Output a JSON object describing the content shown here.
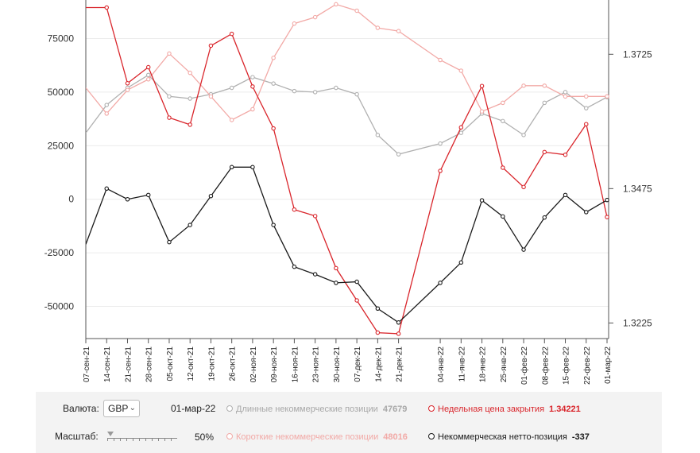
{
  "chart_data": {
    "type": "line",
    "x": [
      "07-сен-21",
      "14-сен-21",
      "21-сен-21",
      "28-сен-21",
      "05-окт-21",
      "12-окт-21",
      "19-окт-21",
      "26-окт-21",
      "02-ноя-21",
      "09-ноя-21",
      "16-ноя-21",
      "23-ноя-21",
      "30-ноя-21",
      "07-дек-21",
      "14-дек-21",
      "21-дек-21",
      "04-янв-22",
      "11-янв-22",
      "18-янв-22",
      "25-янв-22",
      "01-фев-22",
      "08-фев-22",
      "15-фев-22",
      "22-фев-22",
      "01-мар-22"
    ],
    "x_tick_labels": [
      "07-сен-21",
      "14-сен-21",
      "21-сен-21",
      "28-сен-21",
      "05-окт-21",
      "12-окт-21",
      "19-окт-21",
      "26-окт-21",
      "02-ноя-21",
      "09-ноя-21",
      "16-ноя-21",
      "23-ноя-21",
      "30-ноя-21",
      "07-дек-21",
      "14-дек-21",
      "21-дек-21",
      "04-янв-22",
      "11-янв-22",
      "18-янв-22",
      "25-янв-22",
      "01-фев-22",
      "08-фев-22",
      "15-фев-22",
      "22-фев-22",
      "01-мар-22"
    ],
    "y_left": {
      "ticks": [
        75000,
        50000,
        25000,
        0,
        -25000,
        -50000
      ],
      "range": [
        -65000,
        93000
      ]
    },
    "y_right": {
      "ticks": [
        "1.3725",
        "1.3475",
        "1.3225"
      ],
      "tick_values": [
        1.3725,
        1.3475,
        1.3225
      ],
      "range": [
        1.3196,
        1.3826
      ]
    },
    "series": [
      {
        "name": "Длинные некоммерческие позиции",
        "axis": "left",
        "color": "#b0b0b0",
        "values": [
          31000,
          44000,
          52000,
          58000,
          48000,
          47000,
          49000,
          52000,
          57000,
          54000,
          50500,
          50000,
          52000,
          49000,
          30000,
          21000,
          26000,
          31000,
          40000,
          36500,
          30000,
          45000,
          50000,
          42500,
          47679
        ]
      },
      {
        "name": "Короткие некоммерческие позиции",
        "axis": "left",
        "color": "#f2a9a6",
        "values": [
          52000,
          40000,
          51000,
          56000,
          68000,
          59000,
          48000,
          37000,
          42000,
          66000,
          82000,
          85000,
          91000,
          88000,
          80000,
          78500,
          65000,
          60000,
          41000,
          45000,
          53000,
          53000,
          48000,
          48000,
          48016
        ]
      },
      {
        "name": "Недельная цена закрытия",
        "axis": "right",
        "color": "#d9252b",
        "values": [
          1.3812,
          1.3812,
          1.3671,
          1.3701,
          1.3607,
          1.3594,
          1.3741,
          1.3763,
          1.3665,
          1.3587,
          1.3436,
          1.3424,
          1.3327,
          1.3267,
          1.3207,
          1.3205,
          1.3508,
          1.3589,
          1.3666,
          1.3514,
          1.3478,
          1.3543,
          1.3538,
          1.3595,
          1.34221
        ]
      },
      {
        "name": "Некоммерческая нетто-позиция",
        "axis": "left",
        "color": "#1a1a1a",
        "values": [
          -21000,
          5000,
          0,
          2000,
          -20000,
          -12000,
          1500,
          15000,
          15000,
          -12000,
          -31500,
          -35000,
          -39000,
          -38500,
          -51000,
          -57500,
          -39000,
          -29500,
          -500,
          -8000,
          -23500,
          -8500,
          2000,
          -6000,
          -337
        ]
      }
    ]
  },
  "controls": {
    "currency_label": "Валюта:",
    "currency_value": "GBP",
    "date_value": "01-мар-22",
    "scale_label": "Масштаб:",
    "scale_value": "50%"
  },
  "legend": [
    {
      "label": "Длинные некоммерческие позиции",
      "value": "47679",
      "color": "#b0b0b0"
    },
    {
      "label": "Недельная цена закрытия",
      "value": "1.34221",
      "color": "#d9252b"
    },
    {
      "label": "Короткие некоммерческие позиции",
      "value": "48016",
      "color": "#f2a9a6"
    },
    {
      "label": "Некоммерческая нетто-позиция",
      "value": "-337",
      "color": "#1a1a1a"
    }
  ]
}
